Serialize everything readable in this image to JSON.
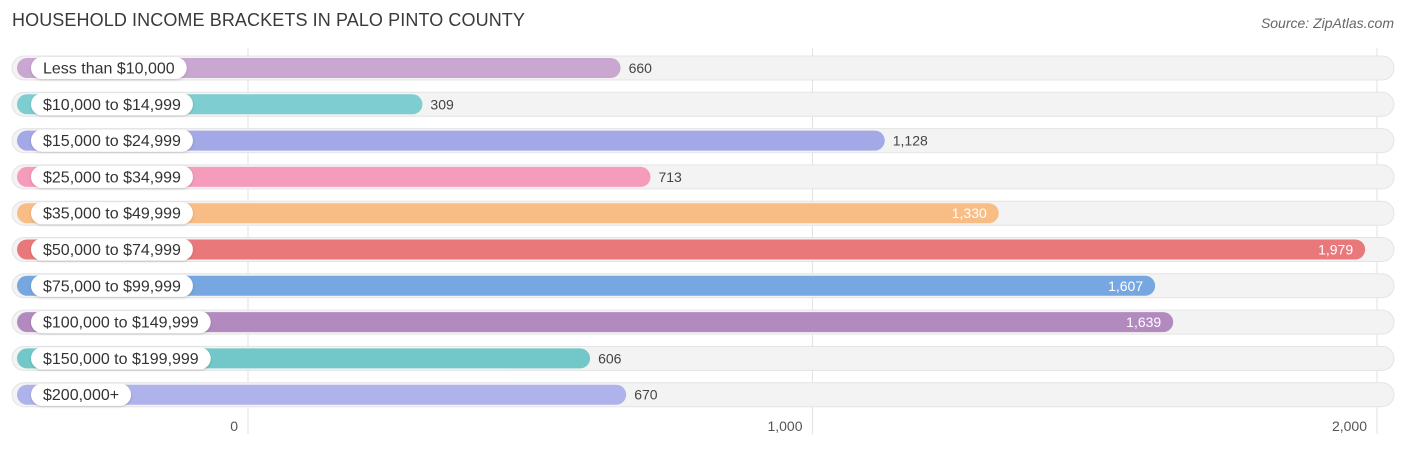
{
  "header": {
    "title": "HOUSEHOLD INCOME BRACKETS IN PALO PINTO COUNTY",
    "source": "Source: ZipAtlas.com"
  },
  "chart_data": {
    "type": "bar",
    "orientation": "horizontal",
    "title": "HOUSEHOLD INCOME BRACKETS IN PALO PINTO COUNTY",
    "categories": [
      "Less than $10,000",
      "$10,000 to $14,999",
      "$15,000 to $24,999",
      "$25,000 to $34,999",
      "$35,000 to $49,999",
      "$50,000 to $74,999",
      "$75,000 to $99,999",
      "$100,000 to $149,999",
      "$150,000 to $199,999",
      "$200,000+"
    ],
    "values": [
      660,
      309,
      1128,
      713,
      1330,
      1979,
      1607,
      1639,
      606,
      670
    ],
    "value_labels": [
      "660",
      "309",
      "1,128",
      "713",
      "1,330",
      "1,979",
      "1,607",
      "1,639",
      "606",
      "670"
    ],
    "colors": [
      "#c9a7d0",
      "#7ecdd1",
      "#a3a8e6",
      "#f59bbb",
      "#f8bd85",
      "#e9787a",
      "#76a7e0",
      "#b38ac0",
      "#72c8c8",
      "#aeb3ec"
    ],
    "xlim": [
      0,
      2000
    ],
    "ticks": [
      {
        "value": 0,
        "label": "0"
      },
      {
        "value": 1000,
        "label": "1,000"
      },
      {
        "value": 2000,
        "label": "2,000"
      }
    ],
    "grid": true,
    "legend": "none"
  }
}
